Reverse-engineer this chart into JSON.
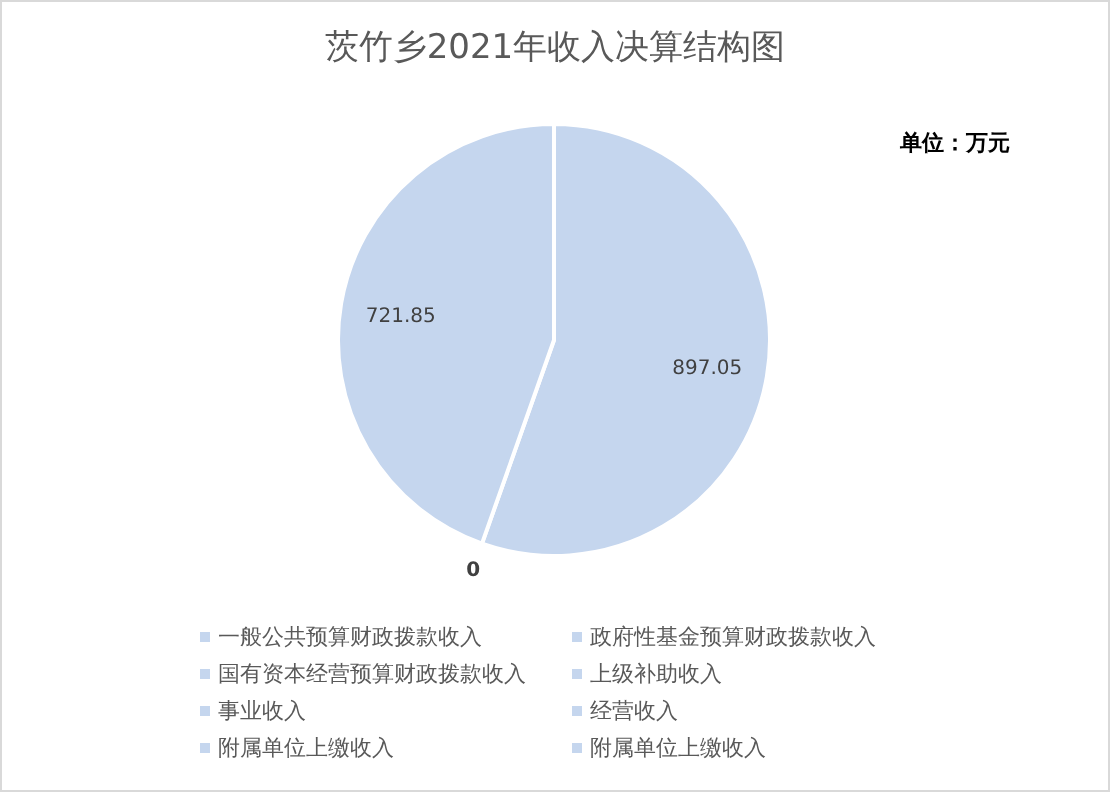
{
  "chart_data": {
    "type": "pie",
    "title": "茨竹乡2021年收入决算结构图",
    "annotations": [
      "单位：万元"
    ],
    "categories": [
      "一般公共预算财政拨款收入",
      "政府性基金预算财政拨款收入",
      "国有资本经营预算财政拨款收入",
      "上级补助收入",
      "事业收入",
      "经营收入",
      "附属单位上缴收入",
      "附属单位上缴收入"
    ],
    "values": [
      897.05,
      0,
      0,
      0,
      0,
      0,
      0,
      721.85
    ],
    "value_labels": [
      "897.05",
      "0",
      null,
      null,
      null,
      null,
      null,
      "721.85"
    ],
    "colors": [
      "#c5d6ee",
      "#c5d6ee",
      "#c5d6ee",
      "#c5d6ee",
      "#c5d6ee",
      "#c5d6ee",
      "#c5d6ee",
      "#c5d6ee"
    ],
    "legend": "bottom"
  }
}
